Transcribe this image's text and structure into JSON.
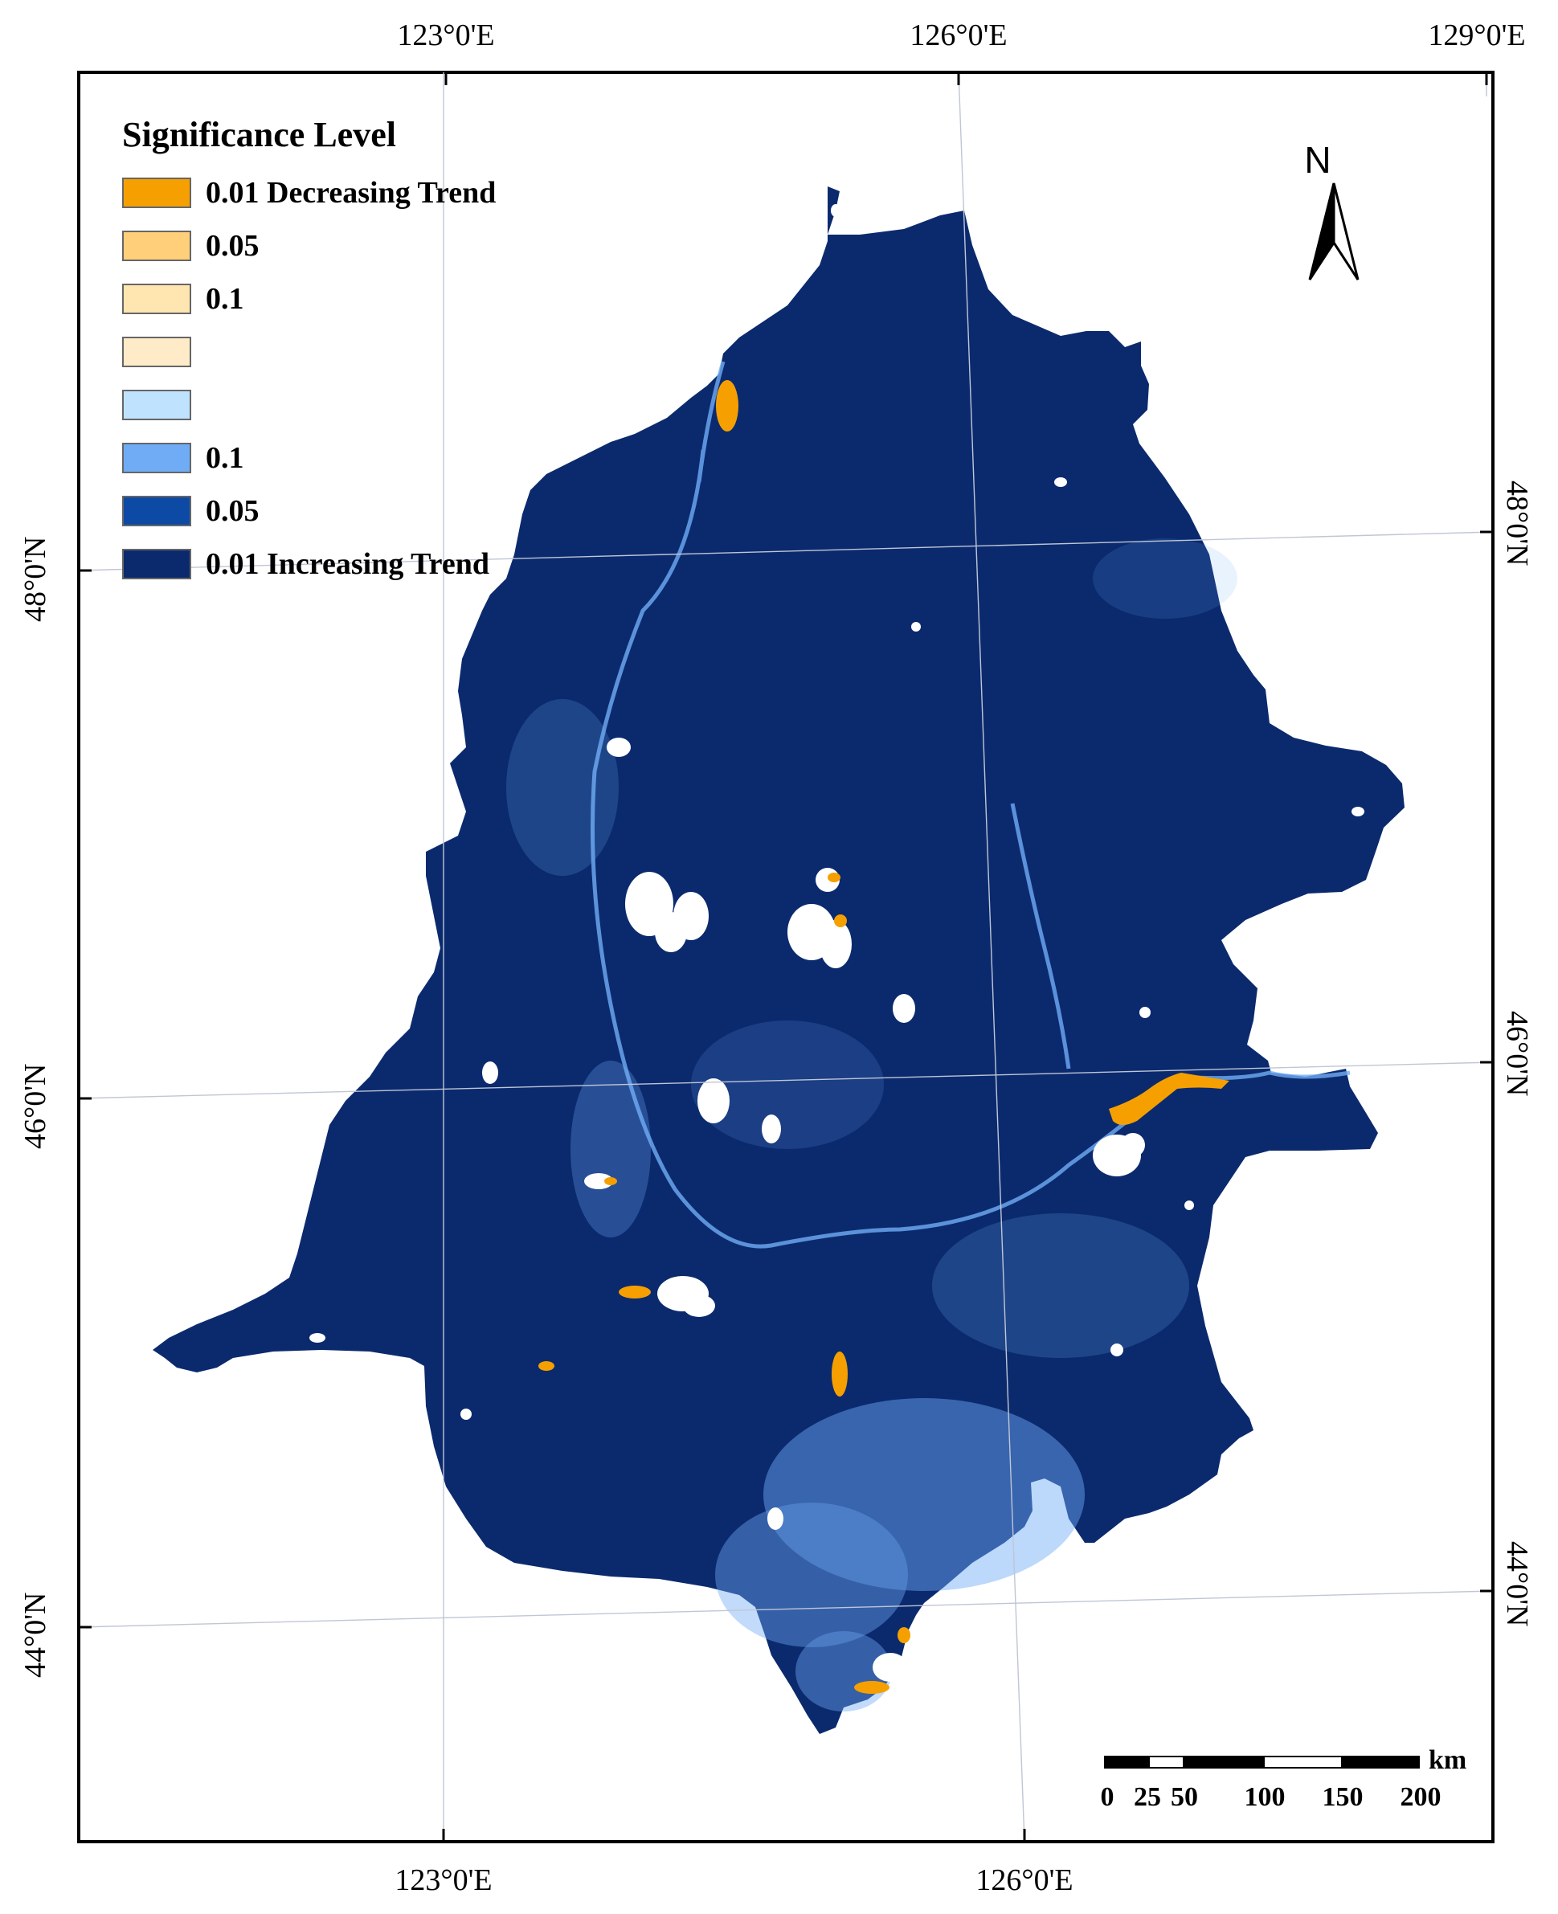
{
  "longitude_labels": {
    "top": [
      "123°0'E",
      "126°0'E",
      "129°0'E"
    ],
    "bottom": [
      "123°0'E",
      "126°0'E"
    ]
  },
  "latitude_labels": {
    "left": [
      "48°0'N",
      "46°0'N",
      "44°0'N"
    ],
    "right": [
      "48°0'N",
      "46°0'N",
      "44°0'N"
    ]
  },
  "legend": {
    "title": "Significance Level",
    "items": [
      {
        "label": "0.01 Decreasing Trend",
        "color": "#F5A000"
      },
      {
        "label": "0.05",
        "color": "#FFCF7A"
      },
      {
        "label": "0.1",
        "color": "#FFE6B0"
      },
      {
        "label": "",
        "color": "#FFEBC8"
      },
      {
        "label": "",
        "color": "#BFE3FF"
      },
      {
        "label": "0.1",
        "color": "#6FACF5"
      },
      {
        "label": "0.05",
        "color": "#0D4AA6"
      },
      {
        "label": "0.01 Increasing Trend",
        "color": "#0B2A6E"
      }
    ]
  },
  "north_arrow": {
    "label": "N",
    "icon": "north-arrow-icon"
  },
  "scale_bar": {
    "unit": "km",
    "ticks": [
      "0",
      "25",
      "50",
      "100",
      "150",
      "200"
    ]
  },
  "colors": {
    "increasing_01": "#0B2A6E",
    "increasing_05": "#0D4AA6",
    "increasing_1": "#6FACF5",
    "decreasing_01": "#F5A000",
    "no_data": "#FFFFFF"
  }
}
